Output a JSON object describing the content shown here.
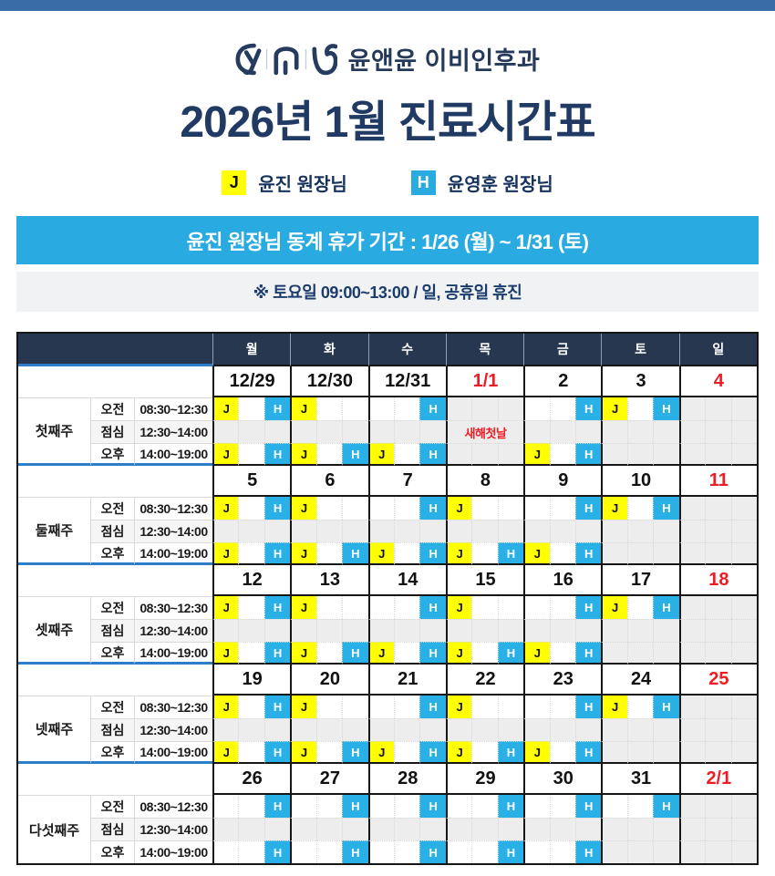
{
  "header": {
    "clinic_name": "윤앤윤 이비인후과",
    "title": "2026년 1월 진료시간표",
    "logo_icons": [
      "y-curl-glyph",
      "arch-glyph",
      "e-curl-glyph"
    ]
  },
  "legend": {
    "items": [
      {
        "code": "J",
        "label": "윤진 원장님",
        "color": "#ffff00",
        "text_color": "#111111"
      },
      {
        "code": "H",
        "label": "윤영훈 원장님",
        "color": "#29abe2",
        "text_color": "#ffffff"
      }
    ]
  },
  "banners": {
    "vacation_notice": "윤진 원장님 동계 휴가 기간 : 1/26 (월) ~ 1/31 (토)",
    "hours_note": "※ 토요일  09:00~13:00 / 일, 공휴일 휴진"
  },
  "colors": {
    "top_bar": "#3a6da6",
    "navy_text": "#203a64",
    "accent_blue": "#29abe2",
    "badge_yellow": "#ffff00",
    "table_header_bg": "#26374f",
    "closed_gray": "#ededed",
    "holiday_red": "#ee1c25",
    "label_underline_blue": "#2e7dc8"
  },
  "table": {
    "day_headers": [
      "월",
      "화",
      "수",
      "목",
      "금",
      "토",
      "일"
    ],
    "time_rows": [
      {
        "name": "오전",
        "range": "08:30~12:30"
      },
      {
        "name": "점심",
        "range": "12:30~14:00"
      },
      {
        "name": "오후",
        "range": "14:00~19:00"
      }
    ],
    "weeks": [
      {
        "label": "첫째주",
        "days": [
          {
            "date": "12/29",
            "red": false,
            "am": [
              "J",
              "H"
            ],
            "pm": [
              "J",
              "H"
            ]
          },
          {
            "date": "12/30",
            "red": false,
            "am": [
              "J"
            ],
            "pm": [
              "J",
              "H"
            ]
          },
          {
            "date": "12/31",
            "red": false,
            "am": [
              "H"
            ],
            "pm": [
              "J",
              "H"
            ]
          },
          {
            "date": "1/1",
            "red": true,
            "closed": true,
            "note": "새해첫날"
          },
          {
            "date": "2",
            "red": false,
            "am": [
              "H"
            ],
            "pm": [
              "J",
              "H"
            ]
          },
          {
            "date": "3",
            "red": false,
            "am": [
              "J",
              "H"
            ],
            "pm_closed": true
          },
          {
            "date": "4",
            "red": true,
            "closed": true
          }
        ]
      },
      {
        "label": "둘째주",
        "days": [
          {
            "date": "5",
            "red": false,
            "am": [
              "J",
              "H"
            ],
            "pm": [
              "J",
              "H"
            ]
          },
          {
            "date": "6",
            "red": false,
            "am": [
              "J"
            ],
            "pm": [
              "J",
              "H"
            ]
          },
          {
            "date": "7",
            "red": false,
            "am": [
              "H"
            ],
            "pm": [
              "J",
              "H"
            ]
          },
          {
            "date": "8",
            "red": false,
            "am": [
              "J"
            ],
            "pm": [
              "J",
              "H"
            ]
          },
          {
            "date": "9",
            "red": false,
            "am": [
              "H"
            ],
            "pm": [
              "J",
              "H"
            ]
          },
          {
            "date": "10",
            "red": false,
            "am": [
              "J",
              "H"
            ],
            "pm_closed": true
          },
          {
            "date": "11",
            "red": true,
            "closed": true
          }
        ]
      },
      {
        "label": "셋째주",
        "days": [
          {
            "date": "12",
            "red": false,
            "am": [
              "J",
              "H"
            ],
            "pm": [
              "J",
              "H"
            ]
          },
          {
            "date": "13",
            "red": false,
            "am": [
              "J"
            ],
            "pm": [
              "J",
              "H"
            ]
          },
          {
            "date": "14",
            "red": false,
            "am": [
              "H"
            ],
            "pm": [
              "J",
              "H"
            ]
          },
          {
            "date": "15",
            "red": false,
            "am": [
              "J"
            ],
            "pm": [
              "J",
              "H"
            ]
          },
          {
            "date": "16",
            "red": false,
            "am": [
              "H"
            ],
            "pm": [
              "J",
              "H"
            ]
          },
          {
            "date": "17",
            "red": false,
            "am": [
              "J",
              "H"
            ],
            "pm_closed": true
          },
          {
            "date": "18",
            "red": true,
            "closed": true
          }
        ]
      },
      {
        "label": "넷째주",
        "days": [
          {
            "date": "19",
            "red": false,
            "am": [
              "J",
              "H"
            ],
            "pm": [
              "J",
              "H"
            ]
          },
          {
            "date": "20",
            "red": false,
            "am": [
              "J"
            ],
            "pm": [
              "J",
              "H"
            ]
          },
          {
            "date": "21",
            "red": false,
            "am": [
              "H"
            ],
            "pm": [
              "J",
              "H"
            ]
          },
          {
            "date": "22",
            "red": false,
            "am": [
              "J"
            ],
            "pm": [
              "J",
              "H"
            ]
          },
          {
            "date": "23",
            "red": false,
            "am": [
              "H"
            ],
            "pm": [
              "J",
              "H"
            ]
          },
          {
            "date": "24",
            "red": false,
            "am": [
              "J",
              "H"
            ],
            "pm_closed": true
          },
          {
            "date": "25",
            "red": true,
            "closed": true
          }
        ]
      },
      {
        "label": "다섯째주",
        "days": [
          {
            "date": "26",
            "red": false,
            "am": [
              "H"
            ],
            "pm": [
              "H"
            ]
          },
          {
            "date": "27",
            "red": false,
            "am": [
              "H"
            ],
            "pm": [
              "H"
            ]
          },
          {
            "date": "28",
            "red": false,
            "am": [
              "H"
            ],
            "pm": [
              "H"
            ]
          },
          {
            "date": "29",
            "red": false,
            "am": [
              "H"
            ],
            "pm": [
              "H"
            ]
          },
          {
            "date": "30",
            "red": false,
            "am": [
              "H"
            ],
            "pm": [
              "H"
            ]
          },
          {
            "date": "31",
            "red": false,
            "am": [
              "H"
            ],
            "pm_closed": true
          },
          {
            "date": "2/1",
            "red": true,
            "closed": true
          }
        ]
      }
    ]
  }
}
